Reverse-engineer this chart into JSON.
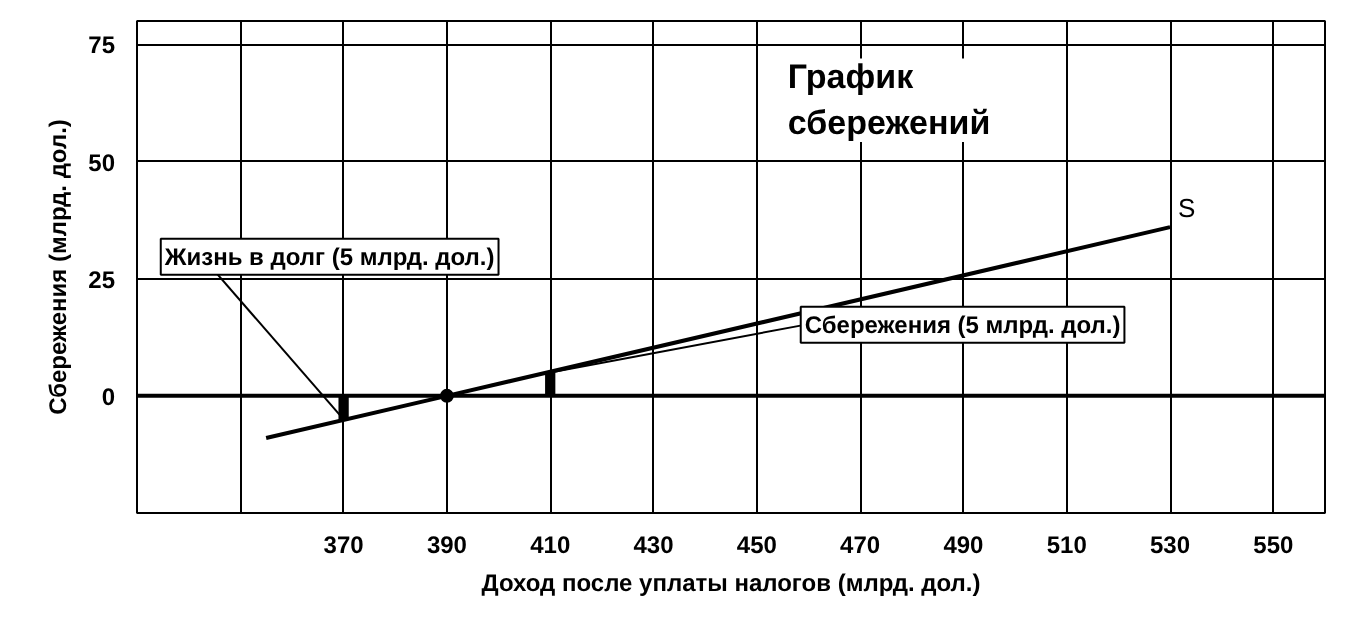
{
  "chart_data": {
    "type": "line",
    "title": "График сбережений",
    "xlabel": "Доход после уплаты налогов (млрд. дол.)",
    "ylabel": "Сбережения (млрд. дол.)",
    "xlim": [
      330,
      560
    ],
    "ylim": [
      -25,
      80
    ],
    "xticks": [
      {
        "value": 350,
        "label": null
      },
      370,
      390,
      410,
      430,
      450,
      470,
      490,
      510,
      530,
      550
    ],
    "yticks": [
      0,
      25,
      50,
      75
    ],
    "grid": true,
    "series": [
      {
        "name": "S",
        "color": "#000000",
        "x": [
          355,
          390,
          530
        ],
        "values": [
          -9,
          0,
          36
        ]
      },
      {
        "type": "bar",
        "color": "#000000",
        "x": [
          370,
          410
        ],
        "base": [
          -5,
          0
        ],
        "values": [
          5,
          5
        ]
      },
      {
        "type": "scatter",
        "marker": "circle",
        "color": "#000000",
        "x": [
          390
        ],
        "values": [
          0
        ]
      }
    ],
    "ref_lines": [
      {
        "axis": "y",
        "value": 0,
        "color": "#000000"
      }
    ],
    "annotations": [
      {
        "text": "Жизнь в долг (5 млрд. дол.)",
        "x": 370,
        "y": -5
      },
      {
        "text": "Сбережения (5 млрд. дол.)",
        "x": 410,
        "y": 5
      }
    ]
  }
}
